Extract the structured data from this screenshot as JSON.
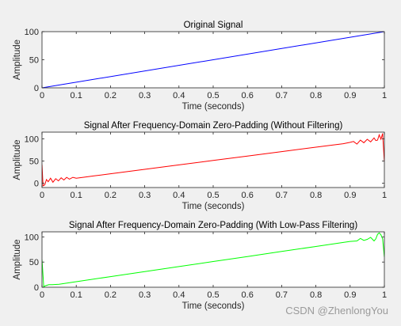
{
  "watermark": "CSDN @ZhenlongYou",
  "colors": {
    "background": "#f0f0f0",
    "axes_face": "#ffffff",
    "axes_edge": "#262626"
  },
  "chart_data": [
    {
      "type": "line",
      "title": "Original Signal",
      "xlabel": "Time (seconds)",
      "ylabel": "Amplitude",
      "xlim": [
        0,
        1
      ],
      "ylim": [
        0,
        100
      ],
      "xticks": [
        0,
        0.1,
        0.2,
        0.3,
        0.4,
        0.5,
        0.6,
        0.7,
        0.8,
        0.9,
        1
      ],
      "xtick_labels": [
        "0",
        "0.1",
        "0.2",
        "0.3",
        "0.4",
        "0.5",
        "0.6",
        "0.7",
        "0.8",
        "0.9",
        "1"
      ],
      "yticks": [
        0,
        50,
        100
      ],
      "ytick_labels": [
        "0",
        "50",
        "100"
      ],
      "grid": false,
      "series": [
        {
          "color": "#0000ff",
          "x": [
            0,
            1
          ],
          "y": [
            0,
            100
          ]
        }
      ]
    },
    {
      "type": "line",
      "title": "Signal After Frequency-Domain Zero-Padding (Without Filtering)",
      "xlabel": "Time (seconds)",
      "ylabel": "Amplitude",
      "xlim": [
        0,
        1
      ],
      "ylim": [
        -10,
        115
      ],
      "xticks": [
        0,
        0.1,
        0.2,
        0.3,
        0.4,
        0.5,
        0.6,
        0.7,
        0.8,
        0.9,
        1
      ],
      "xtick_labels": [
        "0",
        "0.1",
        "0.2",
        "0.3",
        "0.4",
        "0.5",
        "0.6",
        "0.7",
        "0.8",
        "0.9",
        "1"
      ],
      "yticks": [
        0,
        50,
        100
      ],
      "ytick_labels": [
        "0",
        "50",
        "100"
      ],
      "grid": false,
      "series": [
        {
          "color": "#ff0000",
          "x": [
            0,
            0.003,
            0.008,
            0.013,
            0.018,
            0.025,
            0.032,
            0.04,
            0.048,
            0.056,
            0.064,
            0.072,
            0.08,
            0.09,
            0.1,
            0.12,
            0.15,
            0.2,
            0.3,
            0.4,
            0.5,
            0.6,
            0.7,
            0.8,
            0.85,
            0.88,
            0.9,
            0.91,
            0.92,
            0.93,
            0.94,
            0.95,
            0.96,
            0.97,
            0.975,
            0.98,
            0.985,
            0.99,
            0.995,
            1
          ],
          "y": [
            42,
            -6,
            -4,
            8,
            3,
            11,
            2,
            10,
            5,
            12,
            7,
            13,
            9,
            13,
            11,
            13,
            16,
            21,
            31,
            41,
            51,
            61,
            71,
            81,
            86,
            89,
            92,
            94,
            88,
            97,
            91,
            99,
            93,
            102,
            96,
            97,
            109,
            99,
            112,
            48
          ]
        }
      ]
    },
    {
      "type": "line",
      "title": "Signal After Frequency-Domain Zero-Padding (With Low-Pass Filtering)",
      "xlabel": "Time (seconds)",
      "ylabel": "Amplitude",
      "xlim": [
        0,
        1
      ],
      "ylim": [
        0,
        110
      ],
      "xticks": [
        0,
        0.1,
        0.2,
        0.3,
        0.4,
        0.5,
        0.6,
        0.7,
        0.8,
        0.9,
        1
      ],
      "xtick_labels": [
        "0",
        "0.1",
        "0.2",
        "0.3",
        "0.4",
        "0.5",
        "0.6",
        "0.7",
        "0.8",
        "0.9",
        "1"
      ],
      "yticks": [
        0,
        50,
        100
      ],
      "ytick_labels": [
        "0",
        "50",
        "100"
      ],
      "grid": false,
      "series": [
        {
          "color": "#00ff00",
          "x": [
            0,
            0.005,
            0.01,
            0.02,
            0.03,
            0.05,
            0.1,
            0.2,
            0.3,
            0.4,
            0.5,
            0.6,
            0.7,
            0.8,
            0.88,
            0.9,
            0.92,
            0.93,
            0.94,
            0.95,
            0.96,
            0.97,
            0.975,
            0.98,
            0.985,
            0.99,
            0.995,
            1
          ],
          "y": [
            55,
            1,
            3,
            5,
            5,
            6,
            11,
            21,
            31,
            41,
            51,
            61,
            71,
            81,
            89,
            91,
            92,
            97,
            93,
            95,
            99,
            92,
            96,
            105,
            108,
            104,
            96,
            60
          ]
        }
      ]
    }
  ]
}
